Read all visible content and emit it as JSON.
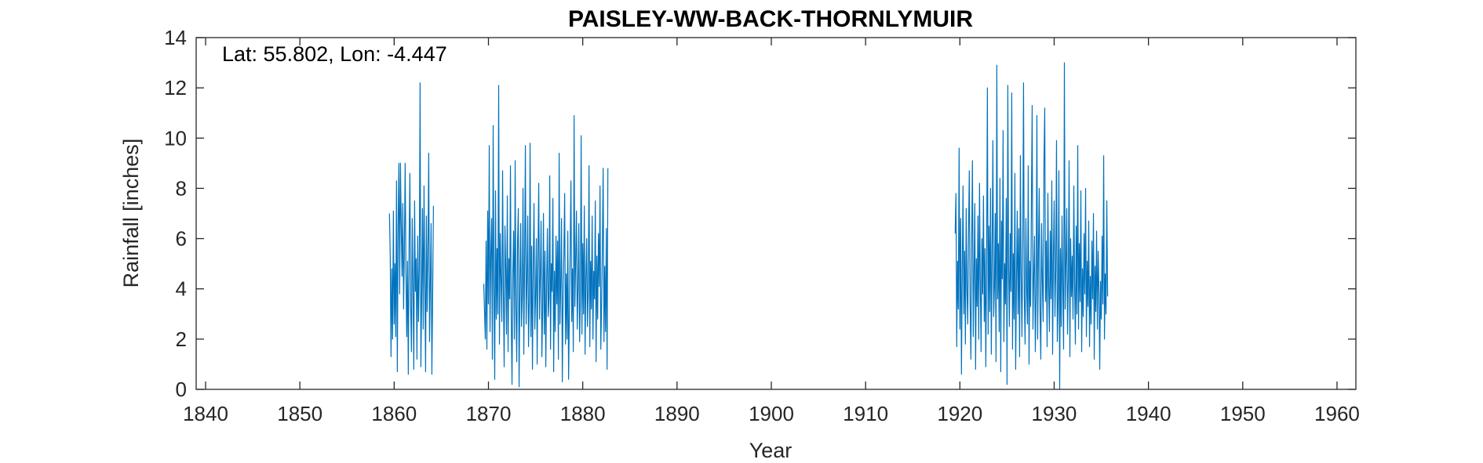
{
  "chart_data": {
    "type": "line",
    "title": "PAISLEY-WW-BACK-THORNLYMUIR",
    "xlabel": "Year",
    "ylabel": "Rainfall [inches]",
    "annotation": "Lat: 55.802, Lon: -4.447",
    "xlim": [
      1839,
      1962
    ],
    "ylim": [
      0,
      14
    ],
    "xticks": [
      1840,
      1850,
      1860,
      1870,
      1880,
      1890,
      1900,
      1910,
      1920,
      1930,
      1940,
      1950,
      1960
    ],
    "yticks": [
      0,
      2,
      4,
      6,
      8,
      10,
      12,
      14
    ],
    "grid": false,
    "box": true,
    "series_color": "#0072BD",
    "series": [
      {
        "segments": [
          {
            "start_year": 1859.5,
            "values": [
              7.0,
              5.3,
              1.3,
              4.8,
              2.0,
              7.1,
              2.6,
              5.0,
              2.1,
              8.3,
              0.7,
              6.4,
              9.0,
              3.8,
              9.0,
              6.6,
              4.5,
              7.4,
              3.2,
              5.6,
              9.0,
              4.7,
              2.1,
              5.1,
              0.6,
              5.8,
              8.6,
              3.3,
              1.5,
              6.8,
              4.1,
              0.8,
              7.5,
              3.9,
              5.2,
              1.2,
              6.1,
              2.7,
              4.9,
              12.2,
              0.9,
              3.6,
              7.2,
              2.4,
              8.1,
              4.4,
              0.7,
              6.9,
              3.1,
              5.5,
              9.4,
              1.9,
              4.2,
              6.6,
              0.6,
              3.8,
              7.3
            ]
          },
          {
            "start_year": 1869.5,
            "values": [
              4.2,
              3.1,
              2.0,
              5.9,
              1.6,
              7.1,
              3.4,
              9.7,
              2.3,
              5.4,
              6.8,
              1.2,
              10.5,
              4.1,
              0.4,
              7.9,
              2.8,
              5.6,
              3.0,
              12.1,
              1.8,
              6.2,
              4.4,
              2.7,
              8.7,
              3.9,
              0.9,
              6.5,
              4.8,
              2.2,
              7.7,
              1.5,
              5.2,
              3.6,
              8.9,
              2.9,
              0.2,
              4.6,
              6.3,
              2.0,
              9.1,
              3.3,
              1.1,
              5.8,
              7.2,
              0.1,
              4.0,
              6.6,
              2.5,
              3.7,
              8.0,
              1.4,
              5.1,
              9.7,
              2.6,
              4.3,
              6.9,
              1.7,
              3.5,
              9.8,
              2.1,
              5.7,
              0.8,
              4.9,
              7.4,
              2.4,
              3.8,
              6.0,
              1.0,
              5.3,
              8.2,
              2.8,
              4.5,
              6.7,
              1.3,
              3.2,
              7.0,
              2.2,
              5.5,
              0.9,
              4.1,
              6.4,
              2.9,
              3.6,
              8.5,
              1.6,
              5.0,
              3.9,
              7.6,
              0.7,
              4.7,
              2.3,
              6.1,
              3.4,
              5.9,
              1.2,
              9.4,
              2.6,
              4.2,
              6.8,
              0.3,
              3.7,
              5.4,
              7.8,
              1.8,
              4.6,
              2.0,
              6.3,
              0.4,
              3.1,
              5.6,
              8.3,
              2.7,
              4.8,
              1.5,
              10.9,
              3.3,
              5.2,
              7.1,
              2.4,
              4.0,
              6.6,
              1.9,
              3.5,
              10.1,
              2.2,
              5.8,
              3.0,
              7.3,
              1.4,
              4.4,
              6.0,
              2.5,
              3.9,
              8.9,
              1.7,
              5.1,
              3.2,
              6.9,
              2.0,
              4.7,
              3.6,
              7.5,
              1.1,
              5.3,
              2.8,
              6.2,
              4.1,
              8.1,
              1.6,
              3.4,
              5.7,
              8.8,
              1.9,
              4.9,
              2.3,
              6.4,
              0.8,
              8.8
            ]
          },
          {
            "start_year": 1919.5,
            "values": [
              6.2,
              7.8,
              1.7,
              5.1,
              3.2,
              9.6,
              2.4,
              6.8,
              0.6,
              4.7,
              8.1,
              3.0,
              5.5,
              1.8,
              7.2,
              4.0,
              2.6,
              6.3,
              8.7,
              3.5,
              1.2,
              5.9,
              9.1,
              2.1,
              4.6,
              7.4,
              0.8,
              5.2,
              3.3,
              6.9,
              2.0,
              8.2,
              4.3,
              1.5,
              6.0,
              3.8,
              7.7,
              2.7,
              5.6,
              0.9,
              4.9,
              12.0,
              2.2,
              6.5,
              3.1,
              8.0,
              1.4,
              5.3,
              9.9,
              2.9,
              4.1,
              7.0,
              1.1,
              12.9,
              3.6,
              5.8,
              2.3,
              8.4,
              0.7,
              6.7,
              4.4,
              10.3,
              1.9,
              5.0,
              3.4,
              7.6,
              0.2,
              12.1,
              4.8,
              2.5,
              6.2,
              3.9,
              11.8,
              1.6,
              5.4,
              2.8,
              8.6,
              0.8,
              4.2,
              7.1,
              3.0,
              6.4,
              1.3,
              9.3,
              4.6,
              2.1,
              5.7,
              12.2,
              3.7,
              1.8,
              6.8,
              4.0,
              2.6,
              8.9,
              1.0,
              5.1,
              3.3,
              7.3,
              11.3,
              2.4,
              4.5,
              6.1,
              1.5,
              3.8,
              10.9,
              2.0,
              5.5,
              8.0,
              3.1,
              1.2,
              6.6,
              4.3,
              2.7,
              9.0,
              11.2,
              3.5,
              5.9,
              1.7,
              7.8,
              4.1,
              2.3,
              6.3,
              3.6,
              8.3,
              1.4,
              5.2,
              7.5,
              2.9,
              4.7,
              9.9,
              1.9,
              3.4,
              8.7,
              0.0,
              5.6,
              2.5,
              6.9,
              4.0,
              1.6,
              13.0,
              3.2,
              5.0,
              7.2,
              2.2,
              4.4,
              9.1,
              1.3,
              6.0,
              3.7,
              5.3,
              2.8,
              8.1,
              4.2,
              1.8,
              6.5,
              3.0,
              9.7,
              2.4,
              5.8,
              3.5,
              7.9,
              1.5,
              4.8,
              2.9,
              6.2,
              3.8,
              8.0,
              2.1,
              5.1,
              3.3,
              6.7,
              1.7,
              4.5,
              2.6,
              5.9,
              3.6,
              7.0,
              1.2,
              4.9,
              3.1,
              6.3,
              2.4,
              5.5,
              3.9,
              0.8,
              4.3,
              2.8,
              6.1,
              3.4,
              9.3,
              2.0,
              4.6,
              3.0,
              7.5,
              3.7
            ]
          }
        ]
      }
    ]
  }
}
